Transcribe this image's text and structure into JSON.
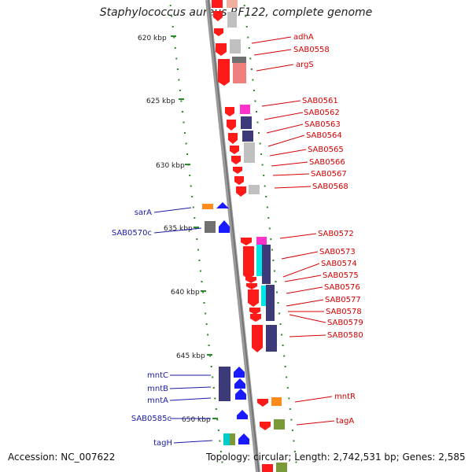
{
  "title": "Staphylococcus aureus RF122, complete genome",
  "footer": {
    "accession": "Accession: NC_007622",
    "topology": "Topology: circular; Length: 2,742,531 bp; Genes: 2,585"
  },
  "scale_labels": [
    "620 kbp",
    "625 kbp",
    "630 kbp",
    "635 kbp",
    "640 kbp",
    "645 kbp",
    "650 kbp"
  ],
  "forward_gene_labels": [
    "adhA",
    "SAB0558",
    "argS",
    "SAB0561",
    "SAB0562",
    "SAB0563",
    "SAB0564",
    "SAB0565",
    "SAB0566",
    "SAB0567",
    "SAB0568",
    "SAB0572",
    "SAB0573",
    "SAB0574",
    "SAB0575",
    "SAB0576",
    "SAB0577",
    "SAB0578",
    "SAB0579",
    "SAB0580",
    "mntR",
    "tagA"
  ],
  "reverse_gene_labels": [
    "sarA",
    "SAB0570c",
    "mntC",
    "mntB",
    "mntA",
    "SAB0585c",
    "tagH"
  ],
  "colors": {
    "forward_label": "#d40000",
    "reverse_label": "#1a1aa6",
    "tick": "#2a8a2a",
    "backbone": "#8a8a8a"
  }
}
